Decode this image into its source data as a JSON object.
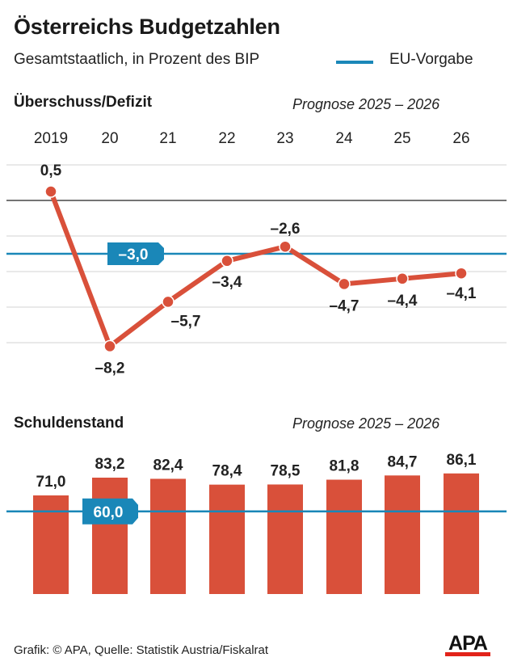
{
  "header": {
    "title": "Österreichs Budgetzahlen",
    "subtitle": "Gesamtstaatlich, in Prozent des BIP",
    "legend_label": "EU-Vorgabe"
  },
  "colors": {
    "series": "#d9503a",
    "reference": "#1a87b8",
    "gridline": "#e2e2e2",
    "zero_line": "#222222"
  },
  "footer": {
    "source": "Grafik: © APA, Quelle: Statistik Austria/Fiskalrat",
    "logo": "APA"
  },
  "chart_data": [
    {
      "type": "line",
      "title": "Überschuss/Defizit",
      "annotation": "Prognose 2025 – 2026",
      "categories": [
        "2019",
        "20",
        "21",
        "22",
        "23",
        "24",
        "25",
        "26"
      ],
      "values": [
        0.5,
        -8.2,
        -5.7,
        -3.4,
        -2.6,
        -4.7,
        -4.4,
        -4.1
      ],
      "value_labels": [
        "0,5",
        "–8,2",
        "–5,7",
        "–3,4",
        "–2,6",
        "–4,7",
        "–4,4",
        "–4,1"
      ],
      "reference": {
        "name": "EU-Vorgabe",
        "value": -3.0,
        "label": "–3,0"
      },
      "gridlines": [
        2,
        0,
        -2,
        -4,
        -6,
        -8
      ],
      "ylim": [
        -9,
        2.5
      ],
      "grid": true,
      "xlabel": "",
      "ylabel": ""
    },
    {
      "type": "bar",
      "title": "Schuldenstand",
      "annotation": "Prognose 2025 – 2026",
      "categories": [
        "2019",
        "2020",
        "2021",
        "2022",
        "2023",
        "2024",
        "2025",
        "2026"
      ],
      "values": [
        71.0,
        83.2,
        82.4,
        78.4,
        78.5,
        81.8,
        84.7,
        86.1
      ],
      "value_labels": [
        "71,0",
        "83,2",
        "82,4",
        "78,4",
        "78,5",
        "81,8",
        "84,7",
        "86,1"
      ],
      "reference": {
        "name": "EU-Vorgabe",
        "value": 60.0,
        "label": "60,0"
      },
      "grid": false,
      "xlabel": "",
      "ylabel": ""
    }
  ]
}
